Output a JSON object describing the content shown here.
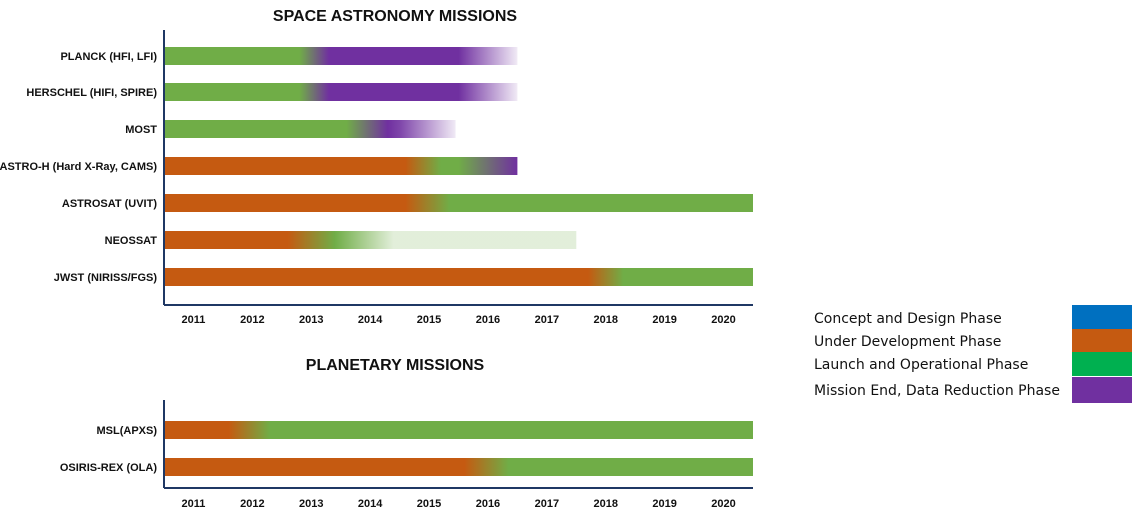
{
  "colors": {
    "concept": "#0070c0",
    "development": "#c55a11",
    "operational": "#70ad47",
    "mission_end": "#7030a0",
    "legend_operational": "#00b050",
    "axis": "#1f3864"
  },
  "legend": {
    "placement": "right",
    "items": [
      {
        "label": "Concept and Design Phase",
        "phase": "concept"
      },
      {
        "label": "Under Development Phase",
        "phase": "development"
      },
      {
        "label": "Launch and Operational Phase",
        "phase": "operational"
      },
      {
        "label": "Mission End, Data Reduction Phase",
        "phase": "mission_end"
      }
    ]
  },
  "chart_data": [
    {
      "type": "gantt",
      "title": "SPACE ASTRONOMY MISSIONS",
      "x_ticks": [
        "2011",
        "2012",
        "2013",
        "2014",
        "2015",
        "2016",
        "2017",
        "2018",
        "2019",
        "2020"
      ],
      "xlim": [
        2011,
        2021
      ],
      "missions": [
        {
          "name": "PLANCK (HFI, LFI)",
          "stops": [
            [
              2011,
              "operational",
              1
            ],
            [
              2013.3,
              "operational",
              1
            ],
            [
              2013.8,
              "mission_end",
              1
            ],
            [
              2016.0,
              "mission_end",
              1
            ],
            [
              2017.0,
              "mission_end",
              0.1
            ]
          ]
        },
        {
          "name": "HERSCHEL (HIFI, SPIRE)",
          "stops": [
            [
              2011,
              "operational",
              1
            ],
            [
              2013.3,
              "operational",
              1
            ],
            [
              2013.8,
              "mission_end",
              1
            ],
            [
              2016.0,
              "mission_end",
              1
            ],
            [
              2017.0,
              "mission_end",
              0.1
            ]
          ]
        },
        {
          "name": "MOST",
          "stops": [
            [
              2011,
              "operational",
              1
            ],
            [
              2014.1,
              "operational",
              1
            ],
            [
              2014.8,
              "mission_end",
              1
            ],
            [
              2015.0,
              "mission_end",
              0.9
            ],
            [
              2015.95,
              "mission_end",
              0.1
            ]
          ]
        },
        {
          "name": "ASTRO-H (Hard X-Ray, CAMS)",
          "stops": [
            [
              2011,
              "development",
              1
            ],
            [
              2015.1,
              "development",
              1
            ],
            [
              2015.7,
              "operational",
              1
            ],
            [
              2016.0,
              "operational",
              1
            ],
            [
              2017.0,
              "mission_end",
              1
            ]
          ]
        },
        {
          "name": "ASTROSAT (UVIT)",
          "stops": [
            [
              2011,
              "development",
              1
            ],
            [
              2015.1,
              "development",
              1
            ],
            [
              2015.85,
              "operational",
              1
            ],
            [
              2021,
              "operational",
              1
            ]
          ]
        },
        {
          "name": "NEOSSAT",
          "stops": [
            [
              2011,
              "development",
              1
            ],
            [
              2013.1,
              "development",
              1
            ],
            [
              2013.9,
              "operational",
              1
            ],
            [
              2014.9,
              "operational",
              0.2
            ],
            [
              2018.0,
              "operational",
              0.2
            ]
          ]
        },
        {
          "name": "JWST (NIRISS/FGS)",
          "stops": [
            [
              2011,
              "development",
              1
            ],
            [
              2018.2,
              "development",
              1
            ],
            [
              2018.8,
              "operational",
              1
            ],
            [
              2021,
              "operational",
              1
            ]
          ]
        }
      ]
    },
    {
      "type": "gantt",
      "title": "PLANETARY MISSIONS",
      "x_ticks": [
        "2011",
        "2012",
        "2013",
        "2014",
        "2015",
        "2016",
        "2017",
        "2018",
        "2019",
        "2020"
      ],
      "xlim": [
        2011,
        2021
      ],
      "missions": [
        {
          "name": "MSL(APXS)",
          "stops": [
            [
              2011,
              "development",
              1
            ],
            [
              2012.1,
              "development",
              1
            ],
            [
              2012.8,
              "operational",
              1
            ],
            [
              2021,
              "operational",
              1
            ]
          ]
        },
        {
          "name": "OSIRIS-REX (OLA)",
          "stops": [
            [
              2011,
              "development",
              1
            ],
            [
              2016.1,
              "development",
              1
            ],
            [
              2016.85,
              "operational",
              1
            ],
            [
              2021,
              "operational",
              1
            ]
          ]
        }
      ]
    }
  ]
}
